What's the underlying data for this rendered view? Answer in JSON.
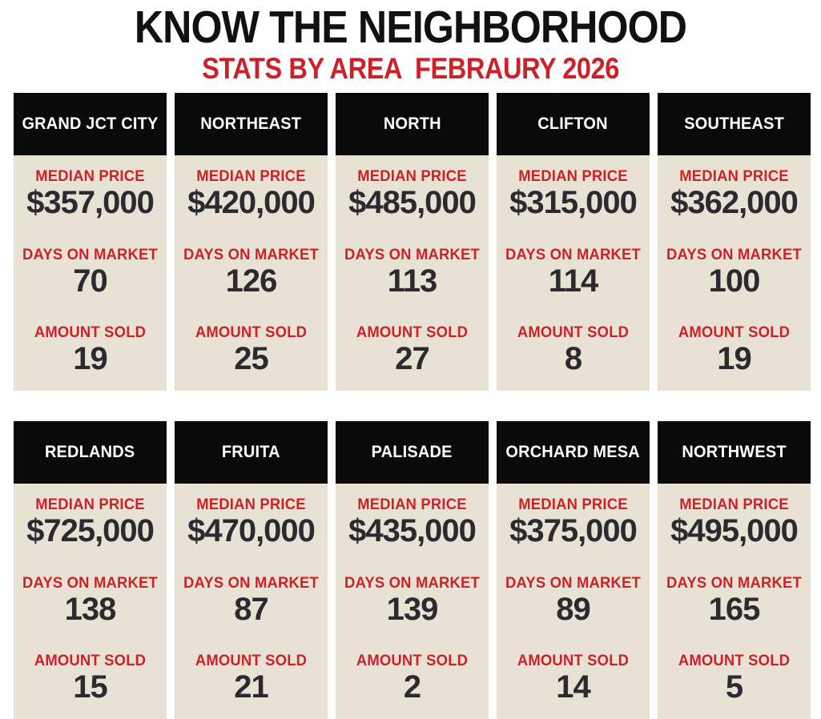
{
  "header": {
    "title": "KNOW THE NEIGHBORHOOD",
    "subtitle": "STATS BY AREA  FEBRAURY 2026"
  },
  "labels": {
    "median_price": "MEDIAN PRICE",
    "days_on_market": "DAYS ON MARKET",
    "amount_sold": "AMOUNT SOLD"
  },
  "colors": {
    "accent_red": "#cd2129",
    "card_bg": "#e8e2d4",
    "header_bg": "#0a0a0a",
    "value_text": "#2b2a30",
    "page_bg": "#ffffff",
    "header_text": "#ffffff",
    "title_text": "#111111"
  },
  "areas": [
    {
      "name": "GRAND JCT CITY",
      "median_price": "$357,000",
      "days_on_market": "70",
      "amount_sold": "19"
    },
    {
      "name": "NORTHEAST",
      "median_price": "$420,000",
      "days_on_market": "126",
      "amount_sold": "25"
    },
    {
      "name": "NORTH",
      "median_price": "$485,000",
      "days_on_market": "113",
      "amount_sold": "27"
    },
    {
      "name": "CLIFTON",
      "median_price": "$315,000",
      "days_on_market": "114",
      "amount_sold": "8"
    },
    {
      "name": "SOUTHEAST",
      "median_price": "$362,000",
      "days_on_market": "100",
      "amount_sold": "19"
    },
    {
      "name": "REDLANDS",
      "median_price": "$725,000",
      "days_on_market": "138",
      "amount_sold": "15"
    },
    {
      "name": "FRUITA",
      "median_price": "$470,000",
      "days_on_market": "87",
      "amount_sold": "21"
    },
    {
      "name": "PALISADE",
      "median_price": "$435,000",
      "days_on_market": "139",
      "amount_sold": "2"
    },
    {
      "name": "ORCHARD MESA",
      "median_price": "$375,000",
      "days_on_market": "89",
      "amount_sold": "14"
    },
    {
      "name": "NORTHWEST",
      "median_price": "$495,000",
      "days_on_market": "165",
      "amount_sold": "5"
    }
  ],
  "chart_data": {
    "type": "table",
    "title": "KNOW THE NEIGHBORHOOD",
    "subtitle": "STATS BY AREA  FEBRAURY 2026",
    "columns": [
      "Area",
      "Median Price ($)",
      "Days on Market",
      "Amount Sold"
    ],
    "rows": [
      [
        "GRAND JCT CITY",
        357000,
        70,
        19
      ],
      [
        "NORTHEAST",
        420000,
        126,
        25
      ],
      [
        "NORTH",
        485000,
        113,
        27
      ],
      [
        "CLIFTON",
        315000,
        114,
        8
      ],
      [
        "SOUTHEAST",
        362000,
        100,
        19
      ],
      [
        "REDLANDS",
        725000,
        138,
        15
      ],
      [
        "FRUITA",
        470000,
        87,
        21
      ],
      [
        "PALISADE",
        435000,
        139,
        2
      ],
      [
        "ORCHARD MESA",
        375000,
        89,
        14
      ],
      [
        "NORTHWEST",
        495000,
        165,
        5
      ]
    ],
    "layout": "two rows of five stat cards, black header with area name, cream body with red labels and dark values"
  }
}
